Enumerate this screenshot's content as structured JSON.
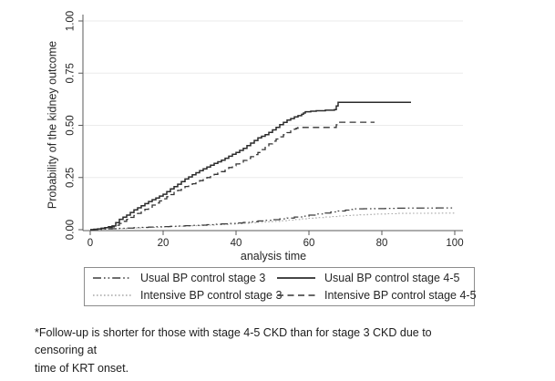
{
  "figure": {
    "footnote_lines": [
      "*Follow-up is shorter for those with stage 4-5 CKD than for stage 3 CKD due to censoring at",
      "time of KRT onset."
    ]
  },
  "chart_data": {
    "type": "line",
    "subtype": "kaplan-meier-step",
    "title": "",
    "xlabel": "analysis time",
    "ylabel": "Probability of the kidney outcome",
    "xlim": [
      0,
      100
    ],
    "ylim": [
      0,
      1
    ],
    "xticks": [
      0,
      20,
      40,
      60,
      80,
      100
    ],
    "yticks": [
      0,
      0.25,
      0.5,
      0.75,
      1
    ],
    "ytick_labels": [
      "0.00",
      "0.25",
      "0.50",
      "0.75",
      "1.00"
    ],
    "grid": "horizontal",
    "legend_position": "bottom-boxed",
    "colors": {
      "grid": "#ebebeb",
      "axis": "#5a5a5a",
      "light_series": "#a8a8a8",
      "dark_series": "#2b2b2b"
    },
    "series": [
      {
        "name": "Usual BP control stage 3",
        "style": "dash-dot-dot",
        "color": "#3d3d3d",
        "points": [
          [
            0,
            0
          ],
          [
            3,
            0.003
          ],
          [
            6,
            0.005
          ],
          [
            10,
            0.008
          ],
          [
            14,
            0.011
          ],
          [
            18,
            0.014
          ],
          [
            22,
            0.016
          ],
          [
            26,
            0.019
          ],
          [
            30,
            0.022
          ],
          [
            34,
            0.026
          ],
          [
            38,
            0.03
          ],
          [
            42,
            0.035
          ],
          [
            46,
            0.042
          ],
          [
            50,
            0.048
          ],
          [
            54,
            0.056
          ],
          [
            58,
            0.065
          ],
          [
            62,
            0.075
          ],
          [
            66,
            0.085
          ],
          [
            70,
            0.094
          ],
          [
            72,
            0.1
          ],
          [
            78,
            0.101
          ],
          [
            84,
            0.103
          ],
          [
            90,
            0.104
          ],
          [
            100,
            0.105
          ]
        ]
      },
      {
        "name": "Usual BP control stage 4-5",
        "style": "solid",
        "color": "#2b2b2b",
        "points": [
          [
            0,
            0
          ],
          [
            2,
            0.004
          ],
          [
            4,
            0.01
          ],
          [
            6,
            0.018
          ],
          [
            8,
            0.05
          ],
          [
            10,
            0.07
          ],
          [
            12,
            0.095
          ],
          [
            14,
            0.115
          ],
          [
            16,
            0.135
          ],
          [
            18,
            0.152
          ],
          [
            20,
            0.17
          ],
          [
            22,
            0.195
          ],
          [
            24,
            0.218
          ],
          [
            26,
            0.243
          ],
          [
            28,
            0.263
          ],
          [
            30,
            0.283
          ],
          [
            32,
            0.3
          ],
          [
            34,
            0.318
          ],
          [
            36,
            0.333
          ],
          [
            38,
            0.352
          ],
          [
            40,
            0.37
          ],
          [
            42,
            0.39
          ],
          [
            44,
            0.415
          ],
          [
            46,
            0.44
          ],
          [
            48,
            0.455
          ],
          [
            50,
            0.478
          ],
          [
            52,
            0.503
          ],
          [
            54,
            0.525
          ],
          [
            56,
            0.54
          ],
          [
            58,
            0.553
          ],
          [
            59,
            0.565
          ],
          [
            62,
            0.57
          ],
          [
            67,
            0.575
          ],
          [
            68,
            0.61
          ],
          [
            88,
            0.61
          ]
        ]
      },
      {
        "name": "Intensive BP control stage 3",
        "style": "fine-dot",
        "color": "#a8a8a8",
        "points": [
          [
            0,
            0
          ],
          [
            3,
            0.002
          ],
          [
            6,
            0.004
          ],
          [
            10,
            0.007
          ],
          [
            14,
            0.01
          ],
          [
            18,
            0.012
          ],
          [
            22,
            0.015
          ],
          [
            26,
            0.018
          ],
          [
            30,
            0.02
          ],
          [
            34,
            0.024
          ],
          [
            38,
            0.027
          ],
          [
            42,
            0.031
          ],
          [
            46,
            0.036
          ],
          [
            50,
            0.04
          ],
          [
            54,
            0.046
          ],
          [
            58,
            0.052
          ],
          [
            62,
            0.058
          ],
          [
            66,
            0.063
          ],
          [
            70,
            0.068
          ],
          [
            74,
            0.071
          ],
          [
            78,
            0.075
          ],
          [
            84,
            0.078
          ],
          [
            92,
            0.079
          ],
          [
            100,
            0.08
          ]
        ]
      },
      {
        "name": "Intensive BP control stage 4-5",
        "style": "dash",
        "color": "#333333",
        "points": [
          [
            0,
            0
          ],
          [
            2,
            0.003
          ],
          [
            4,
            0.007
          ],
          [
            6,
            0.013
          ],
          [
            8,
            0.03
          ],
          [
            10,
            0.05
          ],
          [
            12,
            0.068
          ],
          [
            14,
            0.088
          ],
          [
            16,
            0.108
          ],
          [
            18,
            0.128
          ],
          [
            20,
            0.148
          ],
          [
            22,
            0.168
          ],
          [
            24,
            0.188
          ],
          [
            26,
            0.207
          ],
          [
            28,
            0.22
          ],
          [
            30,
            0.235
          ],
          [
            32,
            0.25
          ],
          [
            34,
            0.265
          ],
          [
            36,
            0.278
          ],
          [
            38,
            0.298
          ],
          [
            40,
            0.315
          ],
          [
            42,
            0.332
          ],
          [
            44,
            0.35
          ],
          [
            46,
            0.37
          ],
          [
            48,
            0.398
          ],
          [
            50,
            0.424
          ],
          [
            52,
            0.445
          ],
          [
            54,
            0.465
          ],
          [
            56,
            0.482
          ],
          [
            57,
            0.49
          ],
          [
            67,
            0.49
          ],
          [
            68,
            0.515
          ],
          [
            78,
            0.515
          ]
        ]
      }
    ]
  }
}
